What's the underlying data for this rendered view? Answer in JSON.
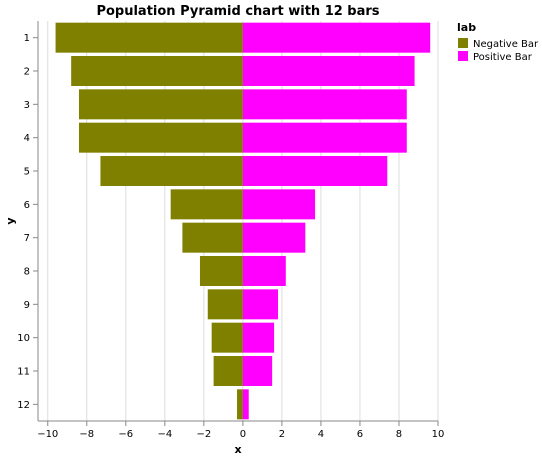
{
  "chart_data": {
    "type": "bar",
    "orientation": "horizontal",
    "layout": "diverging",
    "title": "Population Pyramid chart with 12 bars",
    "xlabel": "x",
    "ylabel": "y",
    "xlim": [
      -10.5,
      10
    ],
    "x_ticks": [
      -10,
      -8,
      -6,
      -4,
      -2,
      0,
      2,
      4,
      6,
      8,
      10
    ],
    "x_tick_labels": [
      "−10",
      "−8",
      "−6",
      "−4",
      "−2",
      "0",
      "2",
      "4",
      "6",
      "8",
      "10"
    ],
    "grid": true,
    "categories": [
      "1",
      "2",
      "3",
      "4",
      "5",
      "6",
      "7",
      "8",
      "9",
      "10",
      "11",
      "12"
    ],
    "series": [
      {
        "name": "Negative Bar",
        "color": "#808000",
        "values": [
          -9.6,
          -8.8,
          -8.4,
          -8.4,
          -7.3,
          -3.7,
          -3.1,
          -2.2,
          -1.8,
          -1.6,
          -1.5,
          -0.3
        ]
      },
      {
        "name": "Positive Bar",
        "color": "#ff00ff",
        "values": [
          9.6,
          8.8,
          8.4,
          8.4,
          7.4,
          3.7,
          3.2,
          2.2,
          1.8,
          1.6,
          1.5,
          0.3
        ]
      }
    ],
    "legend": {
      "title": "lab",
      "position": "top-right"
    }
  }
}
